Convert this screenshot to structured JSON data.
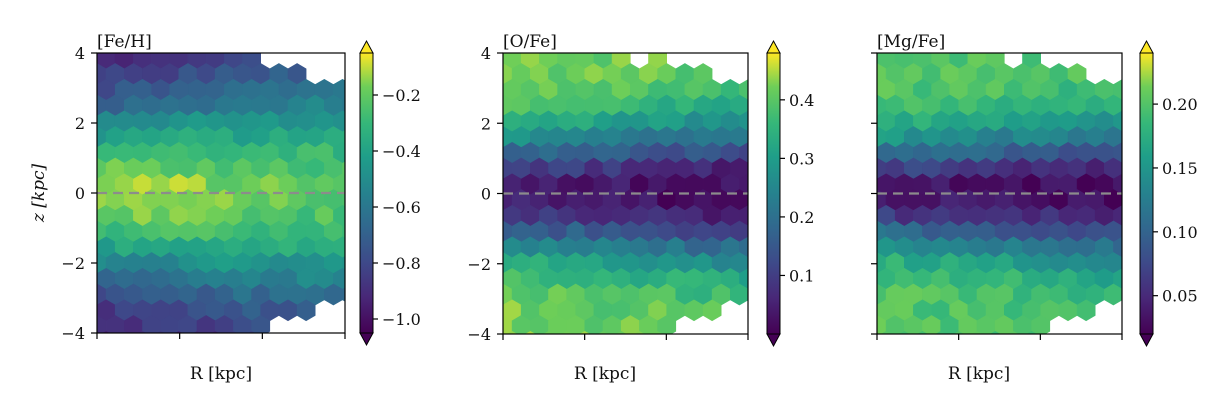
{
  "chart_data": [
    {
      "type": "heatmap",
      "title": "[Fe/H]",
      "xlabel": "R [kpc]",
      "ylabel": "z [kpc]",
      "ylim": [
        -4,
        4
      ],
      "yticks": [
        {
          "value": 4,
          "label": "4"
        },
        {
          "value": 2,
          "label": "2"
        },
        {
          "value": 0,
          "label": "0"
        },
        {
          "value": -2,
          "label": "−2"
        },
        {
          "value": -4,
          "label": "−4"
        }
      ],
      "xtick_count": 4,
      "reference_line_z": 0,
      "colormap": "viridis",
      "colorbar": {
        "range": [
          -1.05,
          -0.05
        ],
        "extend": "both",
        "ticks": [
          {
            "value": -0.2,
            "label": "−0.2"
          },
          {
            "value": -0.4,
            "label": "−0.4"
          },
          {
            "value": -0.6,
            "label": "−0.6"
          },
          {
            "value": -0.8,
            "label": "−0.8"
          },
          {
            "value": -1.0,
            "label": "−1.0"
          }
        ]
      },
      "field": {
        "midplane": -0.1,
        "edge": -0.95,
        "vertical_scale": 2.3,
        "radial_gradient": -0.22,
        "flare": 0.15
      }
    },
    {
      "type": "heatmap",
      "title": "[O/Fe]",
      "xlabel": "R [kpc]",
      "ylabel": "",
      "ylim": [
        -4,
        4
      ],
      "yticks": [
        {
          "value": 4,
          "label": "4"
        },
        {
          "value": 2,
          "label": "2"
        },
        {
          "value": 0,
          "label": "0"
        },
        {
          "value": -2,
          "label": "−2"
        },
        {
          "value": -4,
          "label": "−4"
        }
      ],
      "xtick_count": 4,
      "reference_line_z": 0,
      "colormap": "viridis",
      "colorbar": {
        "range": [
          0.0,
          0.48
        ],
        "extend": "both",
        "ticks": [
          {
            "value": 0.4,
            "label": "0.4"
          },
          {
            "value": 0.3,
            "label": "0.3"
          },
          {
            "value": 0.2,
            "label": "0.2"
          },
          {
            "value": 0.1,
            "label": "0.1"
          }
        ]
      },
      "field": {
        "midplane": 0.04,
        "edge": 0.42,
        "vertical_scale": 1.6,
        "radial_gradient": -0.1,
        "flare": 0.1
      }
    },
    {
      "type": "heatmap",
      "title": "[Mg/Fe]",
      "xlabel": "R [kpc]",
      "ylabel": "",
      "ylim": [
        -4,
        4
      ],
      "yticks": [
        {
          "value": 4,
          "label": ""
        },
        {
          "value": 2,
          "label": ""
        },
        {
          "value": 0,
          "label": ""
        },
        {
          "value": -2,
          "label": ""
        },
        {
          "value": -4,
          "label": ""
        }
      ],
      "xtick_count": 4,
      "reference_line_z": 0,
      "colormap": "viridis",
      "colorbar": {
        "range": [
          0.02,
          0.24
        ],
        "extend": "both",
        "ticks": [
          {
            "value": 0.2,
            "label": "0.20"
          },
          {
            "value": 0.15,
            "label": "0.15"
          },
          {
            "value": 0.1,
            "label": "0.10"
          },
          {
            "value": 0.05,
            "label": "0.05"
          }
        ]
      },
      "field": {
        "midplane": 0.035,
        "edge": 0.2,
        "vertical_scale": 1.4,
        "radial_gradient": -0.08,
        "flare": 0.12
      }
    }
  ]
}
